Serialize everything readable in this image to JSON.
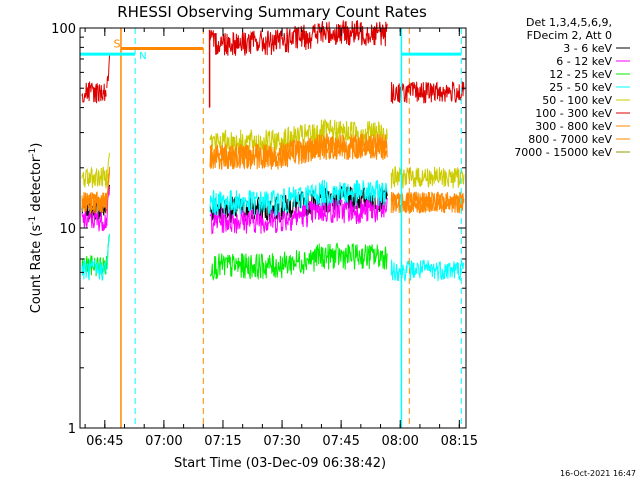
{
  "chart_data": {
    "type": "line",
    "title": "RHESSI Observing Summary Count Rates",
    "xlabel": "Start Time (03-Dec-09 06:38:42)",
    "ylabel_main": "Count Rate (s",
    "ylabel_sup1": "-1",
    "ylabel_mid": " detector",
    "ylabel_sup2": "-1",
    "ylabel_end": ")",
    "yscale": "log",
    "ylim": [
      1,
      100
    ],
    "xlim_minutes": [
      0,
      98
    ],
    "x_ticks": [
      {
        "label": "06:45",
        "minute": 6.3
      },
      {
        "label": "07:00",
        "minute": 21.3
      },
      {
        "label": "07:15",
        "minute": 36.3
      },
      {
        "label": "07:30",
        "minute": 51.3
      },
      {
        "label": "07:45",
        "minute": 66.3
      },
      {
        "label": "08:00",
        "minute": 81.3
      },
      {
        "label": "08:15",
        "minute": 96.3
      }
    ],
    "y_ticks": [
      {
        "label": "1",
        "value": 1
      },
      {
        "label": "10",
        "value": 10
      },
      {
        "label": "100",
        "value": 100
      }
    ],
    "legend_header": [
      "Det 1,3,4,5,6,9,",
      "FDecim 2, Att 0"
    ],
    "series": [
      {
        "name": "3 - 6 keV",
        "color": "#000000",
        "night": 12.5,
        "day": 12.5
      },
      {
        "name": "6 - 12 keV",
        "color": "#ff00ff",
        "night": 11,
        "day": 11
      },
      {
        "name": "12 - 25 keV",
        "color": "#00ee00",
        "night": 6.5,
        "day": 6.5
      },
      {
        "name": "25 - 50 keV",
        "color": "#00ffff",
        "night": 6.2,
        "day": 13.5
      },
      {
        "name": "50 - 100 keV",
        "color": "#cccc00",
        "night": 18,
        "day": 27
      },
      {
        "name": "100 - 300 keV",
        "color": "#dd0000",
        "night": 48,
        "day": 85
      },
      {
        "name": "300 - 800 keV",
        "color": "#ff8800",
        "night": 13.5,
        "day": 23
      },
      {
        "name": "800 - 7000 keV",
        "color": "#ff8800",
        "night": 13.5,
        "day": 23
      },
      {
        "name": "7000 - 15000 keV",
        "color": "#999900",
        "night": 0,
        "day": 0
      }
    ],
    "markers": [
      {
        "label": "S",
        "color": "#ff8800",
        "label_minute": 8.5
      },
      {
        "label": "N",
        "color": "#00ffff",
        "label_minute": 15
      }
    ],
    "timestamp": "16-Oct-2021 16:47"
  }
}
